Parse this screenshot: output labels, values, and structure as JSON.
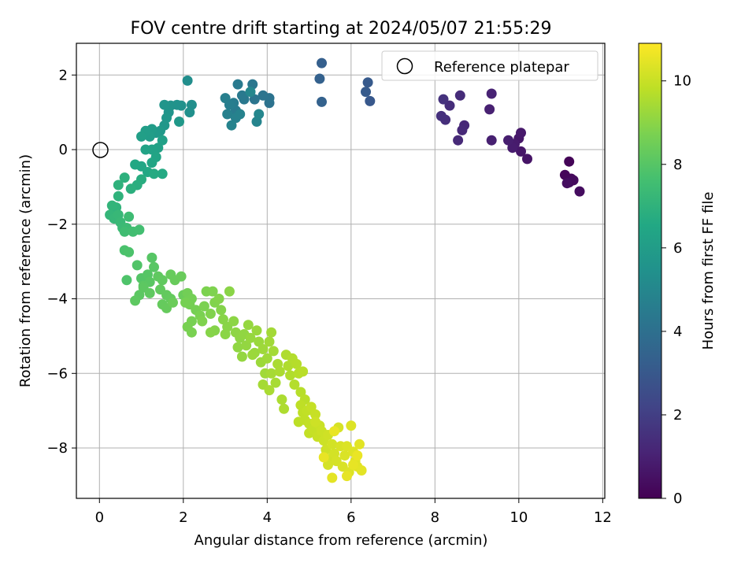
{
  "chart_data": {
    "type": "scatter",
    "title": "FOV centre drift starting at 2024/05/07 21:55:29",
    "xlabel": "Angular distance from reference (arcmin)",
    "ylabel": "Rotation from reference (arcmin)",
    "xlim": [
      -0.55,
      12.05
    ],
    "ylim": [
      -9.35,
      2.85
    ],
    "x_ticks": [
      0,
      2,
      4,
      6,
      8,
      10,
      12
    ],
    "y_ticks": [
      2,
      0,
      -2,
      -4,
      -6,
      -8
    ],
    "x_tick_labels": [
      "0",
      "2",
      "4",
      "6",
      "8",
      "10",
      "12"
    ],
    "y_tick_labels": [
      "2",
      "0",
      "−2",
      "−4",
      "−6",
      "−8"
    ],
    "grid": true,
    "legend": {
      "position": "top-right",
      "entries": [
        "Reference platepar"
      ]
    },
    "reference_point": {
      "x": 0,
      "y": 0,
      "label": "Reference platepar"
    },
    "colorbar": {
      "label": "Hours from first FF file",
      "range": [
        0,
        10.9
      ],
      "ticks": [
        0,
        2,
        4,
        6,
        8,
        10
      ],
      "tick_labels": [
        "0",
        "2",
        "4",
        "6",
        "8",
        "10"
      ],
      "colormap": "viridis"
    },
    "points": [
      [
        11.2,
        -0.32,
        0.1
      ],
      [
        11.1,
        -0.68,
        0.15
      ],
      [
        11.25,
        -0.78,
        0.2
      ],
      [
        11.2,
        -0.88,
        0.25
      ],
      [
        11.3,
        -0.82,
        0.3
      ],
      [
        11.45,
        -1.12,
        0.35
      ],
      [
        11.15,
        -0.9,
        0.4
      ],
      [
        10.2,
        -0.25,
        0.6
      ],
      [
        10.05,
        -0.05,
        0.65
      ],
      [
        10.0,
        0.3,
        0.7
      ],
      [
        10.05,
        0.45,
        0.75
      ],
      [
        9.9,
        0.15,
        0.8
      ],
      [
        9.85,
        0.05,
        0.85
      ],
      [
        9.75,
        0.25,
        0.9
      ],
      [
        9.35,
        0.25,
        0.95
      ],
      [
        9.3,
        1.08,
        1.0
      ],
      [
        9.35,
        1.5,
        1.05
      ],
      [
        8.7,
        0.65,
        1.2
      ],
      [
        8.65,
        0.52,
        1.25
      ],
      [
        8.55,
        0.25,
        1.3
      ],
      [
        8.6,
        1.45,
        1.35
      ],
      [
        8.35,
        1.18,
        1.4
      ],
      [
        8.25,
        0.8,
        1.45
      ],
      [
        8.15,
        0.9,
        1.5
      ],
      [
        8.2,
        1.35,
        1.55
      ],
      [
        6.45,
        1.3,
        3.0
      ],
      [
        6.4,
        1.8,
        3.05
      ],
      [
        6.35,
        1.55,
        3.1
      ],
      [
        5.3,
        2.32,
        3.3
      ],
      [
        5.25,
        1.9,
        3.35
      ],
      [
        5.3,
        1.28,
        3.4
      ],
      [
        4.05,
        1.25,
        4.1
      ],
      [
        4.05,
        1.38,
        4.15
      ],
      [
        3.9,
        1.45,
        4.2
      ],
      [
        3.7,
        1.35,
        4.25
      ],
      [
        3.65,
        1.75,
        4.3
      ],
      [
        3.45,
        1.35,
        4.35
      ],
      [
        3.4,
        1.45,
        4.4
      ],
      [
        3.3,
        1.75,
        4.45
      ],
      [
        3.25,
        1.05,
        4.5
      ],
      [
        3.2,
        1.25,
        4.55
      ],
      [
        3.1,
        1.2,
        4.6
      ],
      [
        3.0,
        1.38,
        4.65
      ],
      [
        3.05,
        0.95,
        4.7
      ],
      [
        3.25,
        0.85,
        4.75
      ],
      [
        3.35,
        0.95,
        4.8
      ],
      [
        3.15,
        0.65,
        4.85
      ],
      [
        3.75,
        0.75,
        4.9
      ],
      [
        3.8,
        0.95,
        4.95
      ],
      [
        3.6,
        1.55,
        5.0
      ],
      [
        2.1,
        1.85,
        5.3
      ],
      [
        2.2,
        1.2,
        5.35
      ],
      [
        2.15,
        1.0,
        5.4
      ],
      [
        1.95,
        1.18,
        5.45
      ],
      [
        1.85,
        1.2,
        5.5
      ],
      [
        1.7,
        1.18,
        5.55
      ],
      [
        1.65,
        1.0,
        5.6
      ],
      [
        1.55,
        1.2,
        5.65
      ],
      [
        1.6,
        0.85,
        5.7
      ],
      [
        1.55,
        0.65,
        5.75
      ],
      [
        1.9,
        0.75,
        5.8
      ],
      [
        1.45,
        0.5,
        5.85
      ],
      [
        1.35,
        0.45,
        5.9
      ],
      [
        1.25,
        0.55,
        5.95
      ],
      [
        1.2,
        0.35,
        6.0
      ],
      [
        1.1,
        0.5,
        6.05
      ],
      [
        1.0,
        0.35,
        6.1
      ],
      [
        1.5,
        0.25,
        6.15
      ],
      [
        1.4,
        0.05,
        6.2
      ],
      [
        1.25,
        0.0,
        6.25
      ],
      [
        1.1,
        0.0,
        6.3
      ],
      [
        1.35,
        -0.2,
        6.35
      ],
      [
        1.25,
        -0.35,
        6.4
      ],
      [
        1.0,
        -0.45,
        6.45
      ],
      [
        0.85,
        -0.4,
        6.5
      ],
      [
        1.15,
        -0.6,
        6.55
      ],
      [
        1.5,
        -0.65,
        6.6
      ],
      [
        1.3,
        -0.65,
        6.65
      ],
      [
        1.0,
        -0.8,
        6.75
      ],
      [
        0.9,
        -0.95,
        6.8
      ],
      [
        0.75,
        -1.05,
        6.85
      ],
      [
        0.6,
        -0.75,
        6.9
      ],
      [
        0.45,
        -0.95,
        6.95
      ],
      [
        0.45,
        -1.25,
        7.0
      ],
      [
        0.4,
        -1.55,
        7.05
      ],
      [
        0.3,
        -1.5,
        7.1
      ],
      [
        0.25,
        -1.75,
        7.15
      ],
      [
        0.35,
        -1.85,
        7.2
      ],
      [
        0.45,
        -1.75,
        7.25
      ],
      [
        0.5,
        -1.95,
        7.3
      ],
      [
        0.55,
        -2.1,
        7.35
      ],
      [
        0.65,
        -2.1,
        7.4
      ],
      [
        0.7,
        -1.8,
        7.45
      ],
      [
        0.6,
        -2.2,
        7.5
      ],
      [
        0.8,
        -2.2,
        7.55
      ],
      [
        0.95,
        -2.15,
        7.6
      ],
      [
        0.6,
        -2.7,
        7.75
      ],
      [
        0.7,
        -2.75,
        7.8
      ],
      [
        0.65,
        -3.5,
        7.85
      ],
      [
        0.9,
        -3.1,
        7.9
      ],
      [
        1.0,
        -3.45,
        7.95
      ],
      [
        1.15,
        -3.35,
        8.0
      ],
      [
        1.25,
        -2.9,
        8.02
      ],
      [
        1.3,
        -3.15,
        8.05
      ],
      [
        1.2,
        -3.55,
        8.08
      ],
      [
        1.05,
        -3.65,
        8.1
      ],
      [
        0.95,
        -3.9,
        8.12
      ],
      [
        1.05,
        -3.7,
        8.14
      ],
      [
        0.85,
        -4.05,
        8.16
      ],
      [
        1.2,
        -3.85,
        8.18
      ],
      [
        1.4,
        -3.4,
        8.2
      ],
      [
        1.5,
        -3.5,
        8.22
      ],
      [
        1.45,
        -3.75,
        8.24
      ],
      [
        1.6,
        -3.9,
        8.26
      ],
      [
        1.7,
        -4.0,
        8.28
      ],
      [
        1.5,
        -4.15,
        8.3
      ],
      [
        1.6,
        -4.25,
        8.32
      ],
      [
        1.7,
        -3.35,
        8.34
      ],
      [
        1.8,
        -3.5,
        8.36
      ],
      [
        1.95,
        -3.4,
        8.38
      ],
      [
        2.0,
        -3.9,
        8.4
      ],
      [
        1.75,
        -4.1,
        8.42
      ],
      [
        2.1,
        -3.85,
        8.55
      ],
      [
        2.2,
        -4.0,
        8.58
      ],
      [
        2.15,
        -4.15,
        8.6
      ],
      [
        2.3,
        -4.3,
        8.62
      ],
      [
        2.05,
        -4.1,
        8.64
      ],
      [
        2.2,
        -4.6,
        8.66
      ],
      [
        2.1,
        -4.75,
        8.68
      ],
      [
        2.2,
        -4.9,
        8.7
      ],
      [
        2.4,
        -4.45,
        8.72
      ],
      [
        2.5,
        -4.2,
        8.74
      ],
      [
        2.55,
        -3.8,
        8.76
      ],
      [
        2.7,
        -3.8,
        8.78
      ],
      [
        2.45,
        -4.6,
        8.8
      ],
      [
        2.65,
        -4.4,
        8.82
      ],
      [
        2.75,
        -4.1,
        8.84
      ],
      [
        2.85,
        -4.0,
        8.86
      ],
      [
        2.9,
        -4.3,
        8.88
      ],
      [
        2.75,
        -4.85,
        8.9
      ],
      [
        2.65,
        -4.9,
        8.92
      ],
      [
        2.95,
        -4.55,
        8.94
      ],
      [
        3.05,
        -4.75,
        8.96
      ],
      [
        3.1,
        -3.8,
        8.98
      ],
      [
        3.0,
        -4.95,
        9.0
      ],
      [
        3.2,
        -4.6,
        9.02
      ],
      [
        3.25,
        -4.9,
        9.04
      ],
      [
        3.35,
        -5.05,
        9.06
      ],
      [
        3.3,
        -5.3,
        9.08
      ],
      [
        3.45,
        -4.95,
        9.1
      ],
      [
        3.5,
        -5.25,
        9.12
      ],
      [
        3.4,
        -5.55,
        9.14
      ],
      [
        3.55,
        -4.7,
        9.16
      ],
      [
        3.6,
        -5.05,
        9.18
      ],
      [
        3.7,
        -5.45,
        9.2
      ],
      [
        3.75,
        -4.85,
        9.22
      ],
      [
        3.8,
        -5.15,
        9.24
      ],
      [
        3.65,
        -5.5,
        9.26
      ],
      [
        3.85,
        -5.7,
        9.28
      ],
      [
        3.9,
        -5.35,
        9.3
      ],
      [
        4.0,
        -5.6,
        9.32
      ],
      [
        3.95,
        -6.0,
        9.34
      ],
      [
        4.05,
        -5.15,
        9.36
      ],
      [
        4.1,
        -4.9,
        9.38
      ],
      [
        4.15,
        -5.4,
        9.4
      ],
      [
        3.9,
        -6.3,
        9.42
      ],
      [
        4.1,
        -6.0,
        9.44
      ],
      [
        4.2,
        -6.25,
        9.46
      ],
      [
        4.05,
        -6.45,
        9.48
      ],
      [
        4.25,
        -5.75,
        9.5
      ],
      [
        4.3,
        -5.95,
        9.52
      ],
      [
        4.35,
        -6.7,
        9.54
      ],
      [
        4.4,
        -6.95,
        9.56
      ],
      [
        4.45,
        -5.5,
        9.58
      ],
      [
        4.5,
        -5.8,
        9.6
      ],
      [
        4.55,
        -6.05,
        9.62
      ],
      [
        4.6,
        -5.6,
        9.64
      ],
      [
        4.65,
        -6.3,
        9.66
      ],
      [
        4.7,
        -5.75,
        9.68
      ],
      [
        4.75,
        -6.0,
        9.7
      ],
      [
        4.8,
        -6.5,
        9.72
      ],
      [
        4.85,
        -5.95,
        9.74
      ],
      [
        4.9,
        -6.7,
        9.76
      ],
      [
        4.75,
        -7.3,
        9.8
      ],
      [
        4.8,
        -6.85,
        9.82
      ],
      [
        4.85,
        -7.05,
        9.84
      ],
      [
        4.9,
        -7.25,
        9.86
      ],
      [
        4.95,
        -7.0,
        9.88
      ],
      [
        5.0,
        -7.35,
        9.9
      ],
      [
        5.0,
        -7.6,
        9.92
      ],
      [
        5.05,
        -6.9,
        9.94
      ],
      [
        5.1,
        -7.5,
        9.96
      ],
      [
        5.15,
        -7.1,
        9.98
      ],
      [
        5.2,
        -7.7,
        10.0
      ],
      [
        5.25,
        -7.4,
        10.02
      ],
      [
        5.3,
        -7.55,
        10.04
      ],
      [
        5.35,
        -7.8,
        10.06
      ],
      [
        5.15,
        -7.3,
        10.08
      ],
      [
        5.4,
        -8.05,
        10.1
      ],
      [
        5.45,
        -7.65,
        10.12
      ],
      [
        5.5,
        -8.3,
        10.14
      ],
      [
        5.55,
        -7.9,
        10.16
      ],
      [
        5.6,
        -8.15,
        10.18
      ],
      [
        5.45,
        -8.45,
        10.2
      ],
      [
        5.65,
        -8.35,
        10.22
      ],
      [
        5.7,
        -7.45,
        10.24
      ],
      [
        5.75,
        -7.95,
        10.26
      ],
      [
        5.8,
        -8.5,
        10.28
      ],
      [
        5.85,
        -8.2,
        10.3
      ],
      [
        5.9,
        -7.95,
        10.32
      ],
      [
        5.95,
        -8.65,
        10.34
      ],
      [
        6.0,
        -7.4,
        10.36
      ],
      [
        6.05,
        -8.1,
        10.38
      ],
      [
        6.1,
        -8.35,
        10.4
      ],
      [
        6.15,
        -8.5,
        10.42
      ],
      [
        6.2,
        -7.9,
        10.44
      ],
      [
        6.25,
        -8.6,
        10.46
      ],
      [
        5.55,
        -8.8,
        10.48
      ],
      [
        5.9,
        -8.75,
        10.5
      ],
      [
        6.05,
        -8.45,
        10.52
      ],
      [
        5.35,
        -8.25,
        10.54
      ],
      [
        5.6,
        -7.55,
        10.56
      ],
      [
        6.15,
        -8.2,
        10.58
      ]
    ]
  }
}
